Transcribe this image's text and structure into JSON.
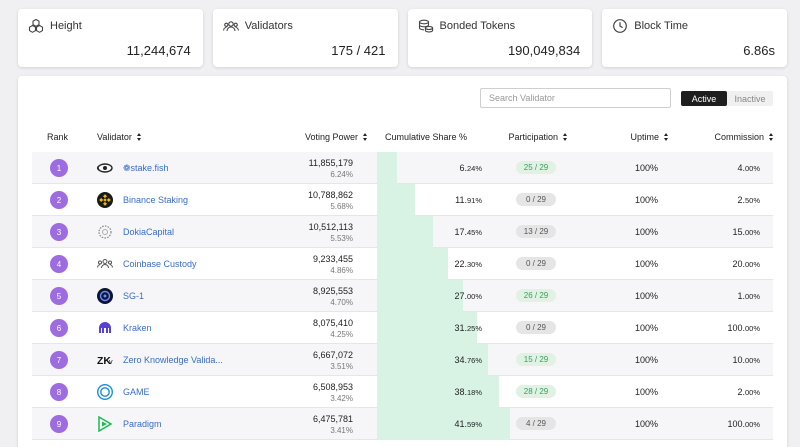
{
  "stats": [
    {
      "icon": "blocks-icon",
      "label": "Height",
      "value": "11,244,674"
    },
    {
      "icon": "users-icon",
      "label": "Validators",
      "value": "175 / 421"
    },
    {
      "icon": "coins-icon",
      "label": "Bonded Tokens",
      "value": "190,049,834"
    },
    {
      "icon": "clock-icon",
      "label": "Block Time",
      "value": "6.86s"
    }
  ],
  "search": {
    "placeholder": "Search Validator"
  },
  "toggle": {
    "active": "Active",
    "inactive": "Inactive"
  },
  "columns": {
    "rank": "Rank",
    "validator": "Validator",
    "voting_power": "Voting Power",
    "cumulative": "Cumulative Share %",
    "participation": "Participation",
    "uptime": "Uptime",
    "commission": "Commission"
  },
  "rows": [
    {
      "rank": "1",
      "icon": "stakefish-icon",
      "name": "❁stake.fish",
      "power": "11,855,179",
      "power_pct": "6.24%",
      "cum_int": "6.",
      "cum_dec": "24%",
      "cum_value": 6.24,
      "participation": "25 / 29",
      "part_status": "green",
      "uptime": "100%",
      "com_int": "4.",
      "com_dec": "00%"
    },
    {
      "rank": "2",
      "icon": "binance-icon",
      "name": "Binance Staking",
      "power": "10,788,862",
      "power_pct": "5.68%",
      "cum_int": "11.",
      "cum_dec": "91%",
      "cum_value": 11.91,
      "participation": "0 / 29",
      "part_status": "gray",
      "uptime": "100%",
      "com_int": "2.",
      "com_dec": "50%"
    },
    {
      "rank": "3",
      "icon": "dokia-icon",
      "name": "DokiaCapital",
      "power": "10,512,113",
      "power_pct": "5.53%",
      "cum_int": "17.",
      "cum_dec": "45%",
      "cum_value": 17.45,
      "participation": "13 / 29",
      "part_status": "gray",
      "uptime": "100%",
      "com_int": "15.",
      "com_dec": "00%"
    },
    {
      "rank": "4",
      "icon": "coinbase-icon",
      "name": "Coinbase Custody",
      "power": "9,233,455",
      "power_pct": "4.86%",
      "cum_int": "22.",
      "cum_dec": "30%",
      "cum_value": 22.3,
      "participation": "0 / 29",
      "part_status": "gray",
      "uptime": "100%",
      "com_int": "20.",
      "com_dec": "00%"
    },
    {
      "rank": "5",
      "icon": "sg1-icon",
      "name": "SG-1",
      "power": "8,925,553",
      "power_pct": "4.70%",
      "cum_int": "27.",
      "cum_dec": "00%",
      "cum_value": 27.0,
      "participation": "26 / 29",
      "part_status": "green",
      "uptime": "100%",
      "com_int": "1.",
      "com_dec": "00%"
    },
    {
      "rank": "6",
      "icon": "kraken-icon",
      "name": "Kraken",
      "power": "8,075,410",
      "power_pct": "4.25%",
      "cum_int": "31.",
      "cum_dec": "25%",
      "cum_value": 31.25,
      "participation": "0 / 29",
      "part_status": "gray",
      "uptime": "100%",
      "com_int": "100.",
      "com_dec": "00%"
    },
    {
      "rank": "7",
      "icon": "zkv-icon",
      "name": "Zero Knowledge Valida...",
      "power": "6,667,072",
      "power_pct": "3.51%",
      "cum_int": "34.",
      "cum_dec": "76%",
      "cum_value": 34.76,
      "participation": "15 / 29",
      "part_status": "green",
      "uptime": "100%",
      "com_int": "10.",
      "com_dec": "00%"
    },
    {
      "rank": "8",
      "icon": "game-icon",
      "name": "GAME",
      "power": "6,508,953",
      "power_pct": "3.42%",
      "cum_int": "38.",
      "cum_dec": "18%",
      "cum_value": 38.18,
      "participation": "28 / 29",
      "part_status": "green",
      "uptime": "100%",
      "com_int": "2.",
      "com_dec": "00%"
    },
    {
      "rank": "9",
      "icon": "paradigm-icon",
      "name": "Paradigm",
      "power": "6,475,781",
      "power_pct": "3.41%",
      "cum_int": "41.",
      "cum_dec": "59%",
      "cum_value": 41.59,
      "participation": "4 / 29",
      "part_status": "gray",
      "uptime": "100%",
      "com_int": "100.",
      "com_dec": "00%"
    }
  ]
}
